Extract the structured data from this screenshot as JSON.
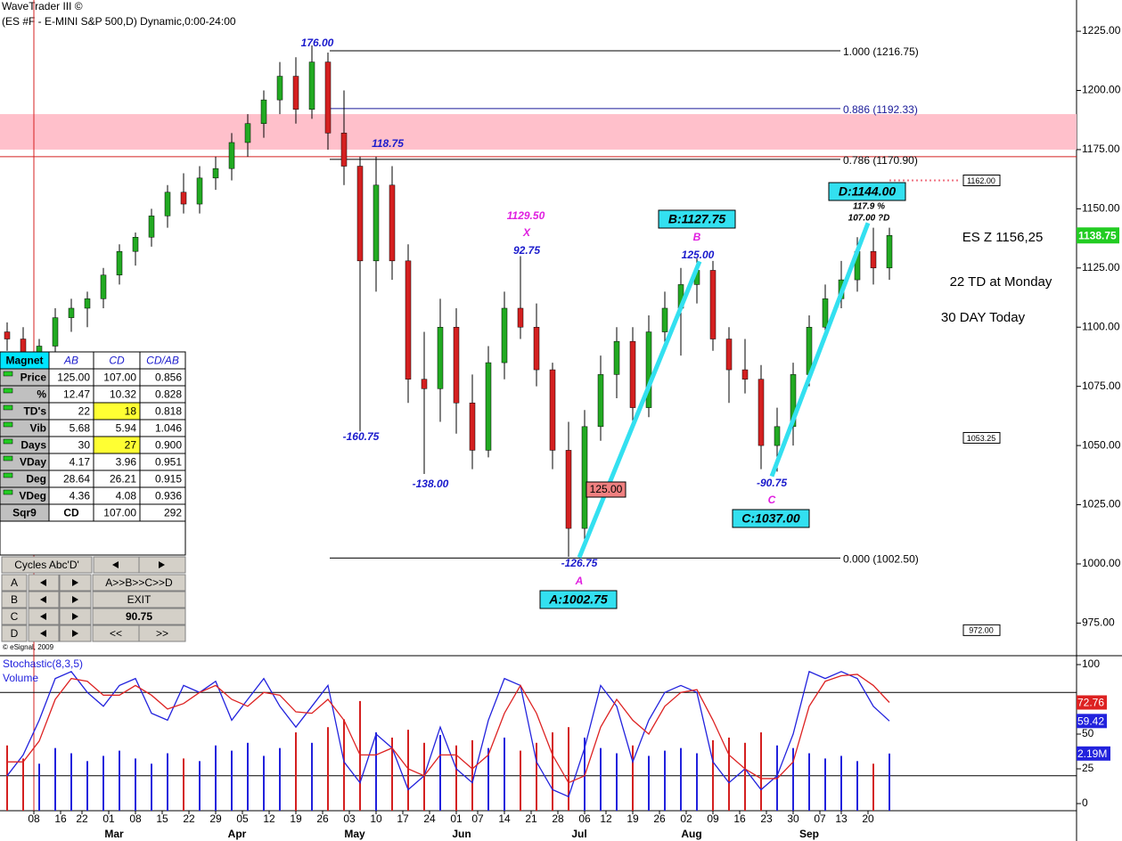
{
  "header": {
    "title": "WaveTrader III ©",
    "symbol": "(ES #F - E-MINI S&P 500,D) Dynamic,0:00-24:00",
    "copyright": "© eSignal, 2009"
  },
  "chart_data": [
    {
      "type": "candlestick",
      "up_color": "#22aa22",
      "down_color": "#d42020",
      "x": [
        0,
        3,
        6,
        9,
        12,
        15,
        18,
        21,
        24,
        27,
        30,
        33,
        36,
        39,
        42,
        45,
        48,
        51,
        54,
        57,
        60,
        63,
        66,
        69,
        72,
        75,
        78,
        81,
        84,
        87,
        90,
        93,
        96,
        99,
        102,
        105,
        108,
        111,
        114,
        117,
        120,
        123,
        126,
        129,
        132,
        135,
        138,
        141,
        144,
        147,
        150,
        153,
        156,
        159,
        162,
        165
      ],
      "open": [
        1098,
        1095,
        1088,
        1092,
        1104,
        1108,
        1112,
        1122,
        1132,
        1138,
        1147,
        1157,
        1152,
        1163,
        1167,
        1178,
        1186,
        1196,
        1206,
        1192,
        1212,
        1182,
        1168,
        1128,
        1160,
        1128,
        1078,
        1074,
        1100,
        1068,
        1048,
        1085,
        1108,
        1100,
        1082,
        1048,
        1015,
        1058,
        1080,
        1094,
        1066,
        1098,
        1108,
        1118,
        1124,
        1095,
        1082,
        1078,
        1050,
        1058,
        1080,
        1100,
        1112,
        1120,
        1132,
        1125
      ],
      "high": [
        1102,
        1100,
        1095,
        1108,
        1112,
        1115,
        1125,
        1135,
        1140,
        1150,
        1160,
        1165,
        1168,
        1172,
        1182,
        1190,
        1200,
        1212,
        1214,
        1219,
        1216,
        1200,
        1172,
        1172,
        1168,
        1135,
        1098,
        1112,
        1108,
        1080,
        1092,
        1115,
        1130,
        1110,
        1085,
        1060,
        1065,
        1088,
        1100,
        1100,
        1105,
        1115,
        1125,
        1129,
        1128,
        1100,
        1095,
        1084,
        1066,
        1085,
        1105,
        1118,
        1128,
        1138,
        1142,
        1142
      ],
      "low": [
        1090,
        1085,
        1080,
        1088,
        1098,
        1100,
        1108,
        1118,
        1126,
        1134,
        1142,
        1148,
        1148,
        1158,
        1162,
        1172,
        1180,
        1190,
        1186,
        1188,
        1175,
        1160,
        1056,
        1115,
        1120,
        1068,
        1038,
        1060,
        1055,
        1040,
        1045,
        1078,
        1095,
        1075,
        1040,
        1003,
        1010,
        1052,
        1070,
        1058,
        1062,
        1090,
        1088,
        1110,
        1090,
        1068,
        1072,
        1040,
        1039,
        1050,
        1075,
        1095,
        1108,
        1115,
        1118,
        1120
      ],
      "close": [
        1095,
        1088,
        1092,
        1104,
        1108,
        1112,
        1122,
        1132,
        1138,
        1147,
        1157,
        1152,
        1163,
        1167,
        1178,
        1186,
        1196,
        1206,
        1192,
        1212,
        1182,
        1168,
        1128,
        1160,
        1128,
        1078,
        1074,
        1100,
        1068,
        1048,
        1085,
        1108,
        1100,
        1082,
        1048,
        1015,
        1058,
        1080,
        1094,
        1066,
        1098,
        1108,
        1118,
        1124,
        1095,
        1082,
        1078,
        1050,
        1058,
        1080,
        1100,
        1112,
        1120,
        1132,
        1125,
        1138.75
      ],
      "xlim": [
        0,
        200
      ],
      "ylim": [
        961.6,
        1238.2
      ],
      "yticks": [
        {
          "value": 975,
          "label": "975.00"
        },
        {
          "value": 1000,
          "label": "1000.00"
        },
        {
          "value": 1025,
          "label": "1025.00"
        },
        {
          "value": 1050,
          "label": "1050.00"
        },
        {
          "value": 1075,
          "label": "1075.00"
        },
        {
          "value": 1100,
          "label": "1100.00"
        },
        {
          "value": 1125,
          "label": "1125.00"
        },
        {
          "value": 1150,
          "label": "1150.00"
        },
        {
          "value": 1175,
          "label": "1175.00"
        },
        {
          "value": 1200,
          "label": "1200.00"
        },
        {
          "value": 1225,
          "label": "1225.00"
        }
      ],
      "zone": [
        1175,
        1190
      ],
      "zone_color": "#ffc0cb",
      "red_line_price": 1172,
      "red_line_x": 5,
      "fib_levels": [
        {
          "label": "1.000 (1216.75)",
          "price": 1216.75
        },
        {
          "label": "0.886 (1192.33)",
          "price": 1192.33
        },
        {
          "label": "0.786 (1170.90)",
          "price": 1170.9
        },
        {
          "label": "0.000 (1002.50)",
          "price": 1002.5
        }
      ],
      "pattern_points": [
        {
          "label": "A:1002.75",
          "x": 107,
          "price": 1002.75
        },
        {
          "label": "B:1127.75",
          "x": 129.5,
          "price": 1127.75
        },
        {
          "label": "C:1037.00",
          "x": 143,
          "price": 1037
        },
        {
          "label": "D:1144.00",
          "x": 161,
          "price": 1144
        }
      ],
      "pattern_color": "#33e0f0",
      "annotations": [
        {
          "text": "176.00",
          "color": "#1a1acc"
        },
        {
          "text": "118.75",
          "color": "#1a1acc"
        },
        {
          "text": "1129.50",
          "color": "#e020e0"
        },
        {
          "text": "X",
          "color": "#e020e0"
        },
        {
          "text": "92.75",
          "color": "#1a1acc"
        },
        {
          "text": "-160.75",
          "color": "#1a1acc"
        },
        {
          "text": "-138.00",
          "color": "#1a1acc"
        },
        {
          "text": "B",
          "color": "#e020e0"
        },
        {
          "text": "125.00",
          "color": "#1a1acc"
        },
        {
          "text": "117.9 %",
          "color": "#000000"
        },
        {
          "text": "107.00 ?D",
          "color": "#000000"
        },
        {
          "text": "-126.75",
          "color": "#1a1acc"
        },
        {
          "text": "A",
          "color": "#e020e0"
        },
        {
          "text": "-90.75",
          "color": "#1a1acc"
        },
        {
          "text": "C",
          "color": "#e020e0"
        }
      ],
      "retrace_box": {
        "text": "125.00",
        "color": "#f08080"
      },
      "notes": [
        "ES Z 1156,25",
        "22 TD at Monday",
        "30 DAY Today"
      ],
      "side_labels": [
        {
          "value": 1162,
          "label": "1162.00"
        },
        {
          "value": 1053.25,
          "label": "1053.25"
        },
        {
          "value": 972,
          "label": "972.00"
        }
      ],
      "last_price_color": "#22cc22"
    },
    {
      "type": "line",
      "title": "Stochastic(8,3,5)",
      "x": [
        0,
        3,
        6,
        9,
        12,
        15,
        18,
        21,
        24,
        27,
        30,
        33,
        36,
        39,
        42,
        45,
        48,
        51,
        54,
        57,
        60,
        63,
        66,
        69,
        72,
        75,
        78,
        81,
        84,
        87,
        90,
        93,
        96,
        99,
        102,
        105,
        108,
        111,
        114,
        117,
        120,
        123,
        126,
        129,
        132,
        135,
        138,
        141,
        144,
        147,
        150,
        153,
        156,
        159,
        162,
        165
      ],
      "series": [
        {
          "color": "#2222dd",
          "values": [
            20,
            35,
            60,
            90,
            95,
            80,
            70,
            85,
            90,
            65,
            60,
            85,
            80,
            88,
            60,
            75,
            90,
            70,
            55,
            70,
            85,
            30,
            15,
            50,
            40,
            10,
            20,
            55,
            25,
            15,
            60,
            90,
            85,
            30,
            10,
            5,
            40,
            85,
            70,
            30,
            60,
            80,
            85,
            80,
            30,
            15,
            25,
            10,
            20,
            50,
            95,
            90,
            95,
            90,
            70,
            59.42
          ]
        },
        {
          "color": "#dd2222",
          "values": [
            30,
            30,
            45,
            75,
            90,
            88,
            78,
            78,
            85,
            78,
            68,
            72,
            80,
            85,
            75,
            70,
            80,
            78,
            66,
            65,
            75,
            60,
            35,
            35,
            40,
            25,
            20,
            35,
            35,
            25,
            35,
            65,
            85,
            65,
            35,
            15,
            20,
            55,
            75,
            60,
            50,
            70,
            80,
            82,
            60,
            35,
            25,
            18,
            18,
            30,
            70,
            88,
            92,
            93,
            85,
            72.76
          ]
        }
      ],
      "levels": [
        80,
        20
      ],
      "volume": {
        "name": "Volume",
        "values": [
          2.5,
          2.0,
          1.8,
          2.4,
          2.2,
          1.9,
          2.1,
          2.3,
          2.0,
          1.8,
          2.2,
          2.0,
          1.9,
          2.5,
          2.3,
          2.6,
          2.1,
          2.4,
          3.0,
          2.6,
          3.2,
          3.5,
          4.2,
          3.0,
          2.8,
          3.1,
          2.6,
          2.9,
          2.5,
          2.7,
          2.4,
          2.8,
          2.3,
          2.6,
          3.0,
          3.2,
          2.8,
          2.4,
          2.2,
          2.5,
          2.1,
          2.3,
          2.4,
          2.2,
          2.7,
          2.8,
          2.6,
          3.0,
          2.5,
          2.4,
          2.2,
          2.0,
          2.1,
          1.9,
          1.8,
          2.19
        ],
        "last_label": "2.19M",
        "y2lim": [
          0,
          5.8
        ],
        "label_color": "#2222dd"
      },
      "xlim": [
        0,
        200
      ],
      "ylim": [
        -5.13,
        103.85
      ],
      "yticks": [
        0,
        25,
        50,
        100
      ],
      "xticks": [
        {
          "value": 5,
          "label": "08"
        },
        {
          "value": 10,
          "label": "16"
        },
        {
          "value": 14,
          "label": "22"
        },
        {
          "value": 19,
          "label": "01"
        },
        {
          "value": 24,
          "label": "08"
        },
        {
          "value": 29,
          "label": "15"
        },
        {
          "value": 34,
          "label": "22"
        },
        {
          "value": 39,
          "label": "29"
        },
        {
          "value": 44,
          "label": "05"
        },
        {
          "value": 49,
          "label": "12"
        },
        {
          "value": 54,
          "label": "19"
        },
        {
          "value": 59,
          "label": "26"
        },
        {
          "value": 64,
          "label": "03"
        },
        {
          "value": 69,
          "label": "10"
        },
        {
          "value": 74,
          "label": "17"
        },
        {
          "value": 79,
          "label": "24"
        },
        {
          "value": 84,
          "label": "01"
        },
        {
          "value": 88,
          "label": "07"
        },
        {
          "value": 93,
          "label": "14"
        },
        {
          "value": 98,
          "label": "21"
        },
        {
          "value": 103,
          "label": "28"
        },
        {
          "value": 108,
          "label": "06"
        },
        {
          "value": 112,
          "label": "12"
        },
        {
          "value": 117,
          "label": "19"
        },
        {
          "value": 122,
          "label": "26"
        },
        {
          "value": 127,
          "label": "02"
        },
        {
          "value": 132,
          "label": "09"
        },
        {
          "value": 137,
          "label": "16"
        },
        {
          "value": 142,
          "label": "23"
        },
        {
          "value": 147,
          "label": "30"
        },
        {
          "value": 152,
          "label": "07"
        },
        {
          "value": 156,
          "label": "13"
        },
        {
          "value": 161,
          "label": "20"
        }
      ],
      "months": [
        {
          "value": 20,
          "label": "Mar"
        },
        {
          "value": 43,
          "label": "Apr"
        },
        {
          "value": 65,
          "label": "May"
        },
        {
          "value": 85,
          "label": "Jun"
        },
        {
          "value": 107,
          "label": "Jul"
        },
        {
          "value": 128,
          "label": "Aug"
        },
        {
          "value": 150,
          "label": "Sep"
        }
      ]
    }
  ],
  "magnet_table": {
    "header": [
      "Magnet",
      "AB",
      "CD",
      "CD/AB"
    ],
    "rows": [
      [
        "Price",
        "125.00",
        "107.00",
        "0.856"
      ],
      [
        "%",
        "12.47",
        "10.32",
        "0.828"
      ],
      [
        "TD's",
        "22",
        "18",
        "0.818"
      ],
      [
        "Vib",
        "5.68",
        "5.94",
        "1.046"
      ],
      [
        "Days",
        "30",
        "27",
        "0.900"
      ],
      [
        "VDay",
        "4.17",
        "3.96",
        "0.951"
      ],
      [
        "Deg",
        "28.64",
        "26.21",
        "0.915"
      ],
      [
        "VDeg",
        "4.36",
        "4.08",
        "0.936"
      ],
      [
        "Sqr9",
        "CD",
        "107.00",
        "292"
      ]
    ],
    "highlight": [
      [
        2,
        2
      ],
      [
        4,
        2
      ]
    ]
  },
  "cycles_panel": {
    "title": "Cycles Abc'D'",
    "points": [
      "A",
      "B",
      "C",
      "D"
    ],
    "sequence": "A>>B>>C>>D",
    "exit": "EXIT",
    "value": "90.75",
    "back": "<<",
    "forward": ">>"
  }
}
